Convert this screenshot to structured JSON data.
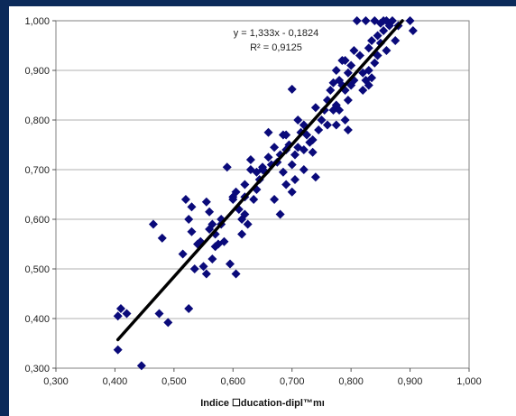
{
  "chart_data": {
    "type": "scatter",
    "title": "",
    "xlabel": "Indice ☐ducation-dipl™mı",
    "ylabel": "",
    "xlim": [
      0.3,
      1.0
    ],
    "ylim": [
      0.3,
      1.0
    ],
    "x_ticks": [
      "0,300",
      "0,400",
      "0,500",
      "0,600",
      "0,700",
      "0,800",
      "0,900",
      "1,000"
    ],
    "y_ticks": [
      "0,300",
      "0,400",
      "0,500",
      "0,600",
      "0,700",
      "0,800",
      "0,900",
      "1,000"
    ],
    "grid": "horizontal",
    "legend": "none",
    "annotations": [
      "y = 1,333x - 0,1824",
      "R² = 0,9125"
    ],
    "trendline": {
      "slope": 1.333,
      "intercept": -0.1824,
      "x_range": [
        0.405,
        0.887
      ]
    },
    "colors": {
      "points": "#0a0a7a",
      "trendline": "#000000",
      "background": "#0b2a5a"
    },
    "points": [
      [
        0.405,
        0.405
      ],
      [
        0.41,
        0.42
      ],
      [
        0.405,
        0.337
      ],
      [
        0.42,
        0.41
      ],
      [
        0.445,
        0.305
      ],
      [
        0.465,
        0.59
      ],
      [
        0.475,
        0.41
      ],
      [
        0.48,
        0.562
      ],
      [
        0.49,
        0.392
      ],
      [
        0.515,
        0.53
      ],
      [
        0.52,
        0.64
      ],
      [
        0.525,
        0.42
      ],
      [
        0.525,
        0.6
      ],
      [
        0.53,
        0.625
      ],
      [
        0.53,
        0.575
      ],
      [
        0.535,
        0.5
      ],
      [
        0.54,
        0.55
      ],
      [
        0.545,
        0.555
      ],
      [
        0.555,
        0.635
      ],
      [
        0.555,
        0.49
      ],
      [
        0.56,
        0.615
      ],
      [
        0.565,
        0.59
      ],
      [
        0.565,
        0.52
      ],
      [
        0.57,
        0.545
      ],
      [
        0.575,
        0.55
      ],
      [
        0.58,
        0.59
      ],
      [
        0.585,
        0.555
      ],
      [
        0.59,
        0.705
      ],
      [
        0.595,
        0.51
      ],
      [
        0.6,
        0.64
      ],
      [
        0.605,
        0.49
      ],
      [
        0.605,
        0.655
      ],
      [
        0.61,
        0.62
      ],
      [
        0.615,
        0.6
      ],
      [
        0.615,
        0.57
      ],
      [
        0.62,
        0.645
      ],
      [
        0.62,
        0.61
      ],
      [
        0.625,
        0.59
      ],
      [
        0.63,
        0.7
      ],
      [
        0.63,
        0.72
      ],
      [
        0.635,
        0.64
      ],
      [
        0.64,
        0.66
      ],
      [
        0.645,
        0.68
      ],
      [
        0.65,
        0.7
      ],
      [
        0.655,
        0.695
      ],
      [
        0.66,
        0.725
      ],
      [
        0.66,
        0.775
      ],
      [
        0.665,
        0.71
      ],
      [
        0.67,
        0.745
      ],
      [
        0.67,
        0.64
      ],
      [
        0.675,
        0.715
      ],
      [
        0.68,
        0.73
      ],
      [
        0.68,
        0.61
      ],
      [
        0.685,
        0.77
      ],
      [
        0.685,
        0.695
      ],
      [
        0.69,
        0.74
      ],
      [
        0.69,
        0.67
      ],
      [
        0.695,
        0.75
      ],
      [
        0.7,
        0.862
      ],
      [
        0.7,
        0.71
      ],
      [
        0.7,
        0.655
      ],
      [
        0.705,
        0.68
      ],
      [
        0.71,
        0.745
      ],
      [
        0.71,
        0.8
      ],
      [
        0.715,
        0.775
      ],
      [
        0.72,
        0.79
      ],
      [
        0.72,
        0.74
      ],
      [
        0.725,
        0.77
      ],
      [
        0.73,
        0.755
      ],
      [
        0.735,
        0.76
      ],
      [
        0.74,
        0.825
      ],
      [
        0.74,
        0.685
      ],
      [
        0.745,
        0.78
      ],
      [
        0.75,
        0.8
      ],
      [
        0.755,
        0.82
      ],
      [
        0.76,
        0.84
      ],
      [
        0.765,
        0.86
      ],
      [
        0.77,
        0.82
      ],
      [
        0.77,
        0.875
      ],
      [
        0.775,
        0.9
      ],
      [
        0.775,
        0.79
      ],
      [
        0.78,
        0.88
      ],
      [
        0.78,
        0.82
      ],
      [
        0.785,
        0.87
      ],
      [
        0.785,
        0.92
      ],
      [
        0.79,
        0.86
      ],
      [
        0.79,
        0.8
      ],
      [
        0.795,
        0.895
      ],
      [
        0.795,
        0.84
      ],
      [
        0.8,
        0.91
      ],
      [
        0.8,
        0.87
      ],
      [
        0.805,
        0.94
      ],
      [
        0.805,
        0.88
      ],
      [
        0.81,
        1.0
      ],
      [
        0.815,
        0.93
      ],
      [
        0.82,
        0.895
      ],
      [
        0.825,
        0.88
      ],
      [
        0.825,
        1.0
      ],
      [
        0.83,
        0.945
      ],
      [
        0.83,
        0.9
      ],
      [
        0.835,
        0.96
      ],
      [
        0.835,
        0.885
      ],
      [
        0.84,
        0.915
      ],
      [
        0.84,
        1.0
      ],
      [
        0.845,
        0.97
      ],
      [
        0.845,
        0.93
      ],
      [
        0.85,
        0.995
      ],
      [
        0.85,
        0.955
      ],
      [
        0.855,
        1.0
      ],
      [
        0.855,
        0.98
      ],
      [
        0.86,
        1.0
      ],
      [
        0.86,
        0.94
      ],
      [
        0.865,
        0.99
      ],
      [
        0.87,
        1.0
      ],
      [
        0.875,
        0.96
      ],
      [
        0.88,
        0.99
      ],
      [
        0.9,
        1.0
      ],
      [
        0.905,
        0.98
      ],
      [
        0.83,
        0.87
      ],
      [
        0.82,
        0.86
      ],
      [
        0.795,
        0.78
      ],
      [
        0.79,
        0.92
      ],
      [
        0.775,
        0.83
      ],
      [
        0.76,
        0.79
      ],
      [
        0.72,
        0.7
      ],
      [
        0.735,
        0.735
      ],
      [
        0.705,
        0.73
      ],
      [
        0.69,
        0.77
      ],
      [
        0.65,
        0.705
      ],
      [
        0.64,
        0.695
      ],
      [
        0.62,
        0.67
      ],
      [
        0.6,
        0.645
      ],
      [
        0.58,
        0.6
      ],
      [
        0.57,
        0.57
      ],
      [
        0.56,
        0.58
      ],
      [
        0.55,
        0.505
      ]
    ]
  }
}
